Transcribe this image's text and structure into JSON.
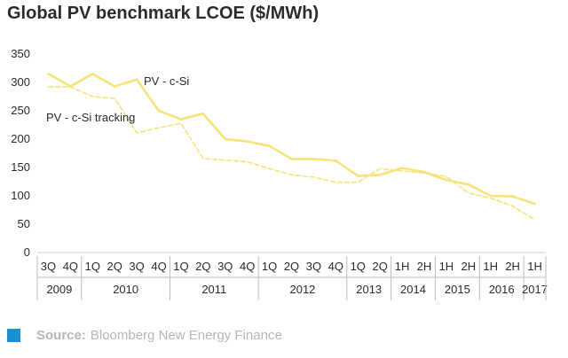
{
  "chart_data": {
    "type": "line",
    "title": "Global PV benchmark LCOE ($/MWh)",
    "xlabel": "",
    "ylabel": "",
    "ylim": [
      0,
      350
    ],
    "yticks": [
      0,
      50,
      100,
      150,
      200,
      250,
      300,
      350
    ],
    "grid": false,
    "legend": "inline labels",
    "categories": [
      "3Q",
      "4Q",
      "1Q",
      "2Q",
      "3Q",
      "4Q",
      "1Q",
      "2Q",
      "3Q",
      "4Q",
      "1Q",
      "2Q",
      "3Q",
      "4Q",
      "1Q",
      "2Q",
      "1H",
      "2H",
      "1H",
      "2H",
      "1H",
      "2H",
      "1H"
    ],
    "years": [
      {
        "label": "2009",
        "span": 2
      },
      {
        "label": "2010",
        "span": 4
      },
      {
        "label": "2011",
        "span": 4
      },
      {
        "label": "2012",
        "span": 4
      },
      {
        "label": "2013",
        "span": 2
      },
      {
        "label": "2014",
        "span": 2
      },
      {
        "label": "2015",
        "span": 2
      },
      {
        "label": "2016",
        "span": 2
      },
      {
        "label": "2017",
        "span": 1
      }
    ],
    "series": [
      {
        "name": "PV - c-Si",
        "style": "solid",
        "color": "#f6e47a",
        "values": [
          315,
          293,
          315,
          293,
          305,
          250,
          235,
          245,
          200,
          196,
          188,
          165,
          165,
          162,
          135,
          137,
          149,
          142,
          128,
          120,
          100,
          99,
          86
        ]
      },
      {
        "name": "PV - c-Si tracking",
        "style": "dashed",
        "color": "#f6e47a",
        "values": [
          292,
          292,
          275,
          272,
          211,
          220,
          228,
          166,
          163,
          160,
          148,
          137,
          133,
          124,
          124,
          148,
          144,
          140,
          134,
          105,
          96,
          82,
          58
        ]
      }
    ]
  },
  "source": {
    "label": "Source:",
    "text": "Bloomberg New Energy Finance",
    "marker_color": "#1b8fd6"
  }
}
